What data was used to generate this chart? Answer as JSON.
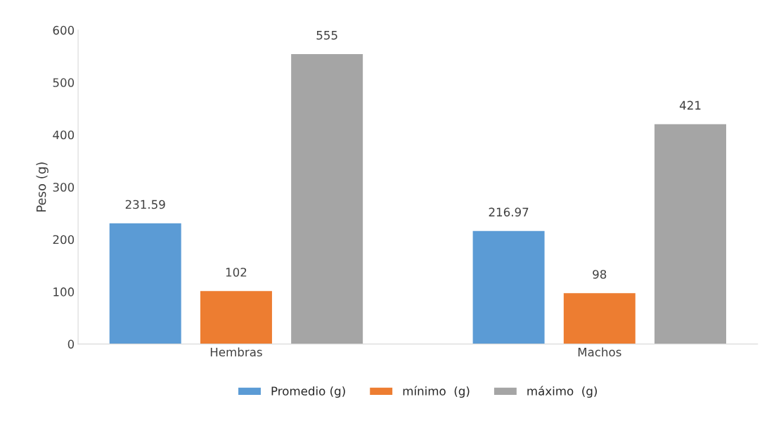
{
  "chart_data": {
    "type": "bar",
    "ylabel": "Peso (g)",
    "categories": [
      "Hembras",
      "Machos"
    ],
    "series": [
      {
        "name": "Promedio (g)",
        "color": "#5b9bd5",
        "values": [
          231.59,
          216.97
        ]
      },
      {
        "name": "mínimo  (g)",
        "color": "#ed7d31",
        "values": [
          102,
          98
        ]
      },
      {
        "name": "máximo  (g)",
        "color": "#a5a5a5",
        "values": [
          555,
          421
        ]
      }
    ],
    "ylim": [
      0,
      600
    ],
    "yticks": [
      0,
      100,
      200,
      300,
      400,
      500,
      600
    ],
    "data_labels": true,
    "grid": false,
    "legend": "bottom"
  }
}
